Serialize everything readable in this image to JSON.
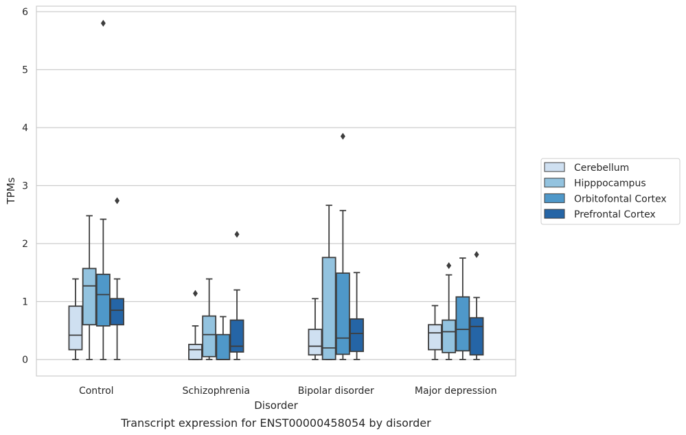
{
  "chart_data": {
    "type": "box",
    "xlabel": "Disorder",
    "ylabel": "TPMs",
    "caption": "Transcript expression for ENST00000458054 by disorder",
    "ylim": [
      -0.28,
      6.1
    ],
    "yticks": [
      0,
      1,
      2,
      3,
      4,
      5,
      6
    ],
    "grid": "horizontal",
    "legend_position": "right",
    "categories": [
      "Control",
      "Schizophrenia",
      "Bipolar disorder",
      "Major depression"
    ],
    "series": [
      {
        "name": "Cerebellum",
        "color": "#cfe0f1",
        "boxes": [
          {
            "min": 0.0,
            "q1": 0.17,
            "median": 0.42,
            "q3": 0.92,
            "max": 1.39,
            "outliers": []
          },
          {
            "min": 0.0,
            "q1": 0.0,
            "median": 0.17,
            "q3": 0.26,
            "max": 0.58,
            "outliers": [
              1.14
            ]
          },
          {
            "min": 0.0,
            "q1": 0.08,
            "median": 0.23,
            "q3": 0.52,
            "max": 1.05,
            "outliers": []
          },
          {
            "min": 0.0,
            "q1": 0.17,
            "median": 0.46,
            "q3": 0.6,
            "max": 0.93,
            "outliers": []
          }
        ]
      },
      {
        "name": "Hipppocampus",
        "color": "#93c3df",
        "boxes": [
          {
            "min": 0.0,
            "q1": 0.6,
            "median": 1.27,
            "q3": 1.57,
            "max": 2.48,
            "outliers": []
          },
          {
            "min": 0.0,
            "q1": 0.05,
            "median": 0.43,
            "q3": 0.75,
            "max": 1.39,
            "outliers": []
          },
          {
            "min": 0.0,
            "q1": 0.0,
            "median": 0.2,
            "q3": 1.76,
            "max": 2.66,
            "outliers": []
          },
          {
            "min": 0.0,
            "q1": 0.12,
            "median": 0.48,
            "q3": 0.68,
            "max": 1.46,
            "outliers": [
              1.62
            ]
          }
        ]
      },
      {
        "name": "Orbitofontal Cortex",
        "color": "#4f98c9",
        "boxes": [
          {
            "min": 0.0,
            "q1": 0.58,
            "median": 1.12,
            "q3": 1.47,
            "max": 2.42,
            "outliers": [
              5.8
            ]
          },
          {
            "min": 0.0,
            "q1": 0.0,
            "median": 0.0,
            "q3": 0.43,
            "max": 0.74,
            "outliers": []
          },
          {
            "min": 0.0,
            "q1": 0.09,
            "median": 0.37,
            "q3": 1.49,
            "max": 2.57,
            "outliers": [
              3.85
            ]
          },
          {
            "min": 0.0,
            "q1": 0.15,
            "median": 0.52,
            "q3": 1.08,
            "max": 1.75,
            "outliers": []
          }
        ]
      },
      {
        "name": "Prefrontal Cortex",
        "color": "#2565a6",
        "boxes": [
          {
            "min": 0.0,
            "q1": 0.6,
            "median": 0.85,
            "q3": 1.05,
            "max": 1.39,
            "outliers": [
              2.74
            ]
          },
          {
            "min": 0.0,
            "q1": 0.13,
            "median": 0.23,
            "q3": 0.68,
            "max": 1.2,
            "outliers": [
              2.16
            ]
          },
          {
            "min": 0.0,
            "q1": 0.14,
            "median": 0.45,
            "q3": 0.7,
            "max": 1.5,
            "outliers": []
          },
          {
            "min": 0.0,
            "q1": 0.08,
            "median": 0.57,
            "q3": 0.72,
            "max": 1.07,
            "outliers": [
              1.81
            ]
          }
        ]
      }
    ]
  }
}
